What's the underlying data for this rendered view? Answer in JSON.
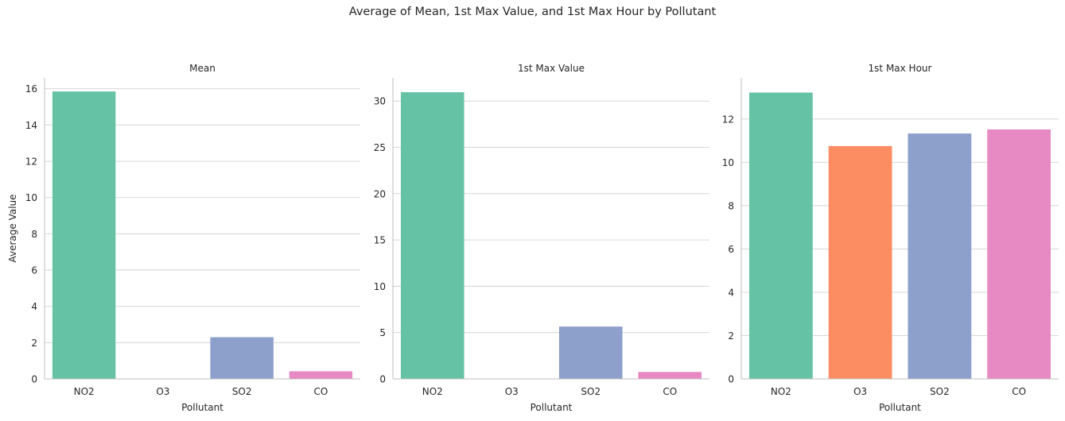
{
  "figure": {
    "title": "Average of Mean, 1st Max Value, and 1st Max Hour by Pollutant"
  },
  "palette": {
    "NO2": "#66c2a5",
    "O3": "#fc8d62",
    "SO2": "#8da0cb",
    "CO": "#e78ac3",
    "grid": "#d0d0d0",
    "axis": "#bfbfbf",
    "text": "#262626"
  },
  "chart_data": [
    {
      "type": "bar",
      "title": "Mean",
      "xlabel": "Pollutant",
      "ylabel": "Average Value",
      "categories": [
        "NO2",
        "O3",
        "SO2",
        "CO"
      ],
      "values": [
        15.85,
        0.02,
        2.3,
        0.42
      ],
      "ylim": [
        0,
        16.6
      ],
      "yticks": [
        0,
        2,
        4,
        6,
        8,
        10,
        12,
        14,
        16
      ],
      "grid": true
    },
    {
      "type": "bar",
      "title": "1st Max Value",
      "xlabel": "Pollutant",
      "ylabel": "",
      "categories": [
        "NO2",
        "O3",
        "SO2",
        "CO"
      ],
      "values": [
        30.95,
        0.03,
        5.65,
        0.75
      ],
      "ylim": [
        0,
        32.5
      ],
      "yticks": [
        0,
        5,
        10,
        15,
        20,
        25,
        30
      ],
      "grid": true
    },
    {
      "type": "bar",
      "title": "1st Max Hour",
      "xlabel": "Pollutant",
      "ylabel": "",
      "categories": [
        "NO2",
        "O3",
        "SO2",
        "CO"
      ],
      "values": [
        13.22,
        10.75,
        11.33,
        11.52
      ],
      "ylim": [
        0,
        13.9
      ],
      "yticks": [
        0,
        2,
        4,
        6,
        8,
        10,
        12
      ],
      "grid": true
    }
  ]
}
